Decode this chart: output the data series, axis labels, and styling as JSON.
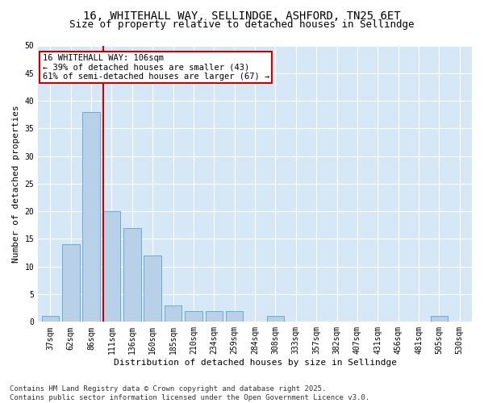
{
  "title": "16, WHITEHALL WAY, SELLINDGE, ASHFORD, TN25 6ET",
  "subtitle": "Size of property relative to detached houses in Sellindge",
  "xlabel": "Distribution of detached houses by size in Sellindge",
  "ylabel": "Number of detached properties",
  "categories": [
    "37sqm",
    "62sqm",
    "86sqm",
    "111sqm",
    "136sqm",
    "160sqm",
    "185sqm",
    "210sqm",
    "234sqm",
    "259sqm",
    "284sqm",
    "308sqm",
    "333sqm",
    "357sqm",
    "382sqm",
    "407sqm",
    "431sqm",
    "456sqm",
    "481sqm",
    "505sqm",
    "530sqm"
  ],
  "values": [
    1,
    14,
    38,
    20,
    17,
    12,
    3,
    2,
    2,
    2,
    0,
    1,
    0,
    0,
    0,
    0,
    0,
    0,
    0,
    1,
    0
  ],
  "bar_color": "#b8d0e8",
  "bar_edge_color": "#6aaad4",
  "vline_x_index": 3,
  "vline_color": "#cc0000",
  "annotation_line1": "16 WHITEHALL WAY: 106sqm",
  "annotation_line2": "← 39% of detached houses are smaller (43)",
  "annotation_line3": "61% of semi-detached houses are larger (67) →",
  "annotation_box_color": "#ffffff",
  "annotation_box_edge": "#cc0000",
  "ylim": [
    0,
    50
  ],
  "yticks": [
    0,
    5,
    10,
    15,
    20,
    25,
    30,
    35,
    40,
    45,
    50
  ],
  "plot_bg_color": "#d6e8f5",
  "grid_color": "#ffffff",
  "footer": "Contains HM Land Registry data © Crown copyright and database right 2025.\nContains public sector information licensed under the Open Government Licence v3.0.",
  "title_fontsize": 10,
  "subtitle_fontsize": 9,
  "xlabel_fontsize": 8,
  "ylabel_fontsize": 8,
  "tick_fontsize": 7,
  "annot_fontsize": 7.5,
  "footer_fontsize": 6.5
}
